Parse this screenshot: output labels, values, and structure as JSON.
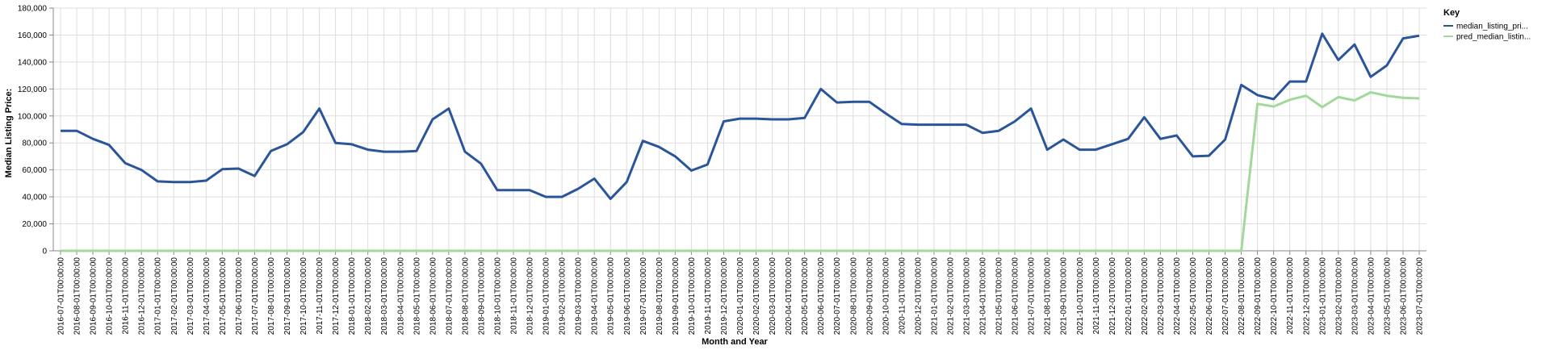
{
  "chart_data": {
    "type": "line",
    "xlabel": "Month and Year",
    "ylabel": "Median Listing Price:",
    "ylim": [
      0,
      180000
    ],
    "yticks": [
      0,
      20000,
      40000,
      60000,
      80000,
      100000,
      120000,
      140000,
      160000,
      180000
    ],
    "ytick_labels": [
      "0",
      "20,000",
      "40,000",
      "60,000",
      "80,000",
      "100,000",
      "120,000",
      "140,000",
      "160,000",
      "180,000"
    ],
    "grid": true,
    "legend": {
      "title": "Key",
      "position": "right"
    },
    "x": [
      "2016-07-01T00:00:00",
      "2016-08-01T00:00:00",
      "2016-09-01T00:00:00",
      "2016-10-01T00:00:00",
      "2016-11-01T00:00:00",
      "2016-12-01T00:00:00",
      "2017-01-01T00:00:00",
      "2017-02-01T00:00:00",
      "2017-03-01T00:00:00",
      "2017-04-01T00:00:00",
      "2017-05-01T00:00:00",
      "2017-06-01T00:00:00",
      "2017-07-01T00:00:00",
      "2017-08-01T00:00:00",
      "2017-09-01T00:00:00",
      "2017-10-01T00:00:00",
      "2017-11-01T00:00:00",
      "2017-12-01T00:00:00",
      "2018-01-01T00:00:00",
      "2018-02-01T00:00:00",
      "2018-03-01T00:00:00",
      "2018-04-01T00:00:00",
      "2018-05-01T00:00:00",
      "2018-06-01T00:00:00",
      "2018-07-01T00:00:00",
      "2018-08-01T00:00:00",
      "2018-09-01T00:00:00",
      "2018-10-01T00:00:00",
      "2018-11-01T00:00:00",
      "2018-12-01T00:00:00",
      "2019-01-01T00:00:00",
      "2019-02-01T00:00:00",
      "2019-03-01T00:00:00",
      "2019-04-01T00:00:00",
      "2019-05-01T00:00:00",
      "2019-06-01T00:00:00",
      "2019-07-01T00:00:00",
      "2019-08-01T00:00:00",
      "2019-09-01T00:00:00",
      "2019-10-01T00:00:00",
      "2019-11-01T00:00:00",
      "2019-12-01T00:00:00",
      "2020-01-01T00:00:00",
      "2020-02-01T00:00:00",
      "2020-03-01T00:00:00",
      "2020-04-01T00:00:00",
      "2020-05-01T00:00:00",
      "2020-06-01T00:00:00",
      "2020-07-01T00:00:00",
      "2020-08-01T00:00:00",
      "2020-09-01T00:00:00",
      "2020-10-01T00:00:00",
      "2020-11-01T00:00:00",
      "2020-12-01T00:00:00",
      "2021-01-01T00:00:00",
      "2021-02-01T00:00:00",
      "2021-03-01T00:00:00",
      "2021-04-01T00:00:00",
      "2021-05-01T00:00:00",
      "2021-06-01T00:00:00",
      "2021-07-01T00:00:00",
      "2021-08-01T00:00:00",
      "2021-09-01T00:00:00",
      "2021-10-01T00:00:00",
      "2021-11-01T00:00:00",
      "2021-12-01T00:00:00",
      "2022-01-01T00:00:00",
      "2022-02-01T00:00:00",
      "2022-03-01T00:00:00",
      "2022-04-01T00:00:00",
      "2022-05-01T00:00:00",
      "2022-06-01T00:00:00",
      "2022-07-01T00:00:00",
      "2022-08-01T00:00:00",
      "2022-09-01T00:00:00",
      "2022-10-01T00:00:00",
      "2022-11-01T00:00:00",
      "2022-12-01T00:00:00",
      "2023-01-01T00:00:00",
      "2023-02-01T00:00:00",
      "2023-03-01T00:00:00",
      "2023-04-01T00:00:00",
      "2023-05-01T00:00:00",
      "2023-06-01T00:00:00",
      "2023-07-01T00:00:00"
    ],
    "series": [
      {
        "name": "median_listing_pri...",
        "color": "#2a5599",
        "values": [
          89000,
          89000,
          83000,
          78500,
          65000,
          60000,
          51500,
          51000,
          51000,
          52000,
          60500,
          61000,
          55500,
          74000,
          79000,
          88000,
          105500,
          80000,
          79000,
          75000,
          73500,
          73500,
          74000,
          97500,
          105500,
          73500,
          64500,
          45000,
          45000,
          45000,
          40000,
          40000,
          46000,
          53500,
          38500,
          51000,
          81500,
          77000,
          70000,
          59500,
          64000,
          96000,
          98000,
          98000,
          97500,
          97500,
          98500,
          120000,
          110000,
          110500,
          110500,
          102000,
          94000,
          93500,
          93500,
          93500,
          93500,
          87500,
          89000,
          96000,
          105500,
          75000,
          82500,
          75000,
          75000,
          79000,
          83000,
          99000,
          83000,
          85500,
          70000,
          70500,
          82500,
          123000,
          115500,
          112500,
          125500,
          125500,
          161000,
          141500,
          153000,
          129000,
          137500,
          157500,
          159500
        ]
      },
      {
        "name": "pred_median_listin...",
        "color": "#a1d99b",
        "values": [
          0,
          0,
          0,
          0,
          0,
          0,
          0,
          0,
          0,
          0,
          0,
          0,
          0,
          0,
          0,
          0,
          0,
          0,
          0,
          0,
          0,
          0,
          0,
          0,
          0,
          0,
          0,
          0,
          0,
          0,
          0,
          0,
          0,
          0,
          0,
          0,
          0,
          0,
          0,
          0,
          0,
          0,
          0,
          0,
          0,
          0,
          0,
          0,
          0,
          0,
          0,
          0,
          0,
          0,
          0,
          0,
          0,
          0,
          0,
          0,
          0,
          0,
          0,
          0,
          0,
          0,
          0,
          0,
          0,
          0,
          0,
          0,
          0,
          0,
          109000,
          107000,
          112000,
          115000,
          106500,
          114000,
          111500,
          117500,
          115000,
          113500,
          113000
        ]
      }
    ]
  }
}
